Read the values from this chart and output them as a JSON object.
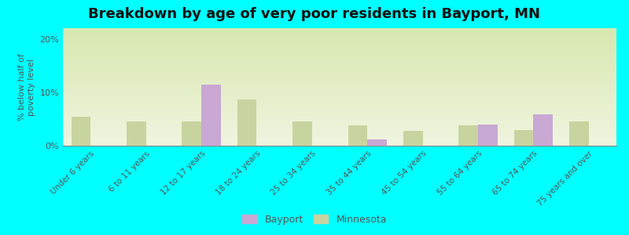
{
  "title": "Breakdown by age of very poor residents in Bayport, MN",
  "ylabel": "% below half of\npoverty level",
  "categories": [
    "Under 6 years",
    "6 to 11 years",
    "12 to 17 years",
    "18 to 24 years",
    "25 to 34 years",
    "35 to 44 years",
    "45 to 54 years",
    "55 to 64 years",
    "65 to 74 years",
    "75 years and over"
  ],
  "bayport_values": [
    0,
    0,
    11.5,
    0,
    0,
    1.2,
    0,
    4.0,
    5.8,
    0
  ],
  "minnesota_values": [
    5.5,
    4.5,
    4.5,
    8.7,
    4.5,
    3.8,
    2.8,
    3.8,
    3.0,
    4.5
  ],
  "bayport_color": "#c9a8d4",
  "minnesota_color": "#c8d4a0",
  "background_top": "#d8e8b0",
  "background_bottom": "#f0f5e0",
  "outer_background": "#00ffff",
  "ylim": [
    0,
    22
  ],
  "yticks": [
    0,
    10,
    20
  ],
  "ytick_labels": [
    "0%",
    "10%",
    "20%"
  ],
  "title_fontsize": 13,
  "ylabel_fontsize": 8,
  "bar_width": 0.35,
  "legend_bayport": "Bayport",
  "legend_minnesota": "Minnesota"
}
